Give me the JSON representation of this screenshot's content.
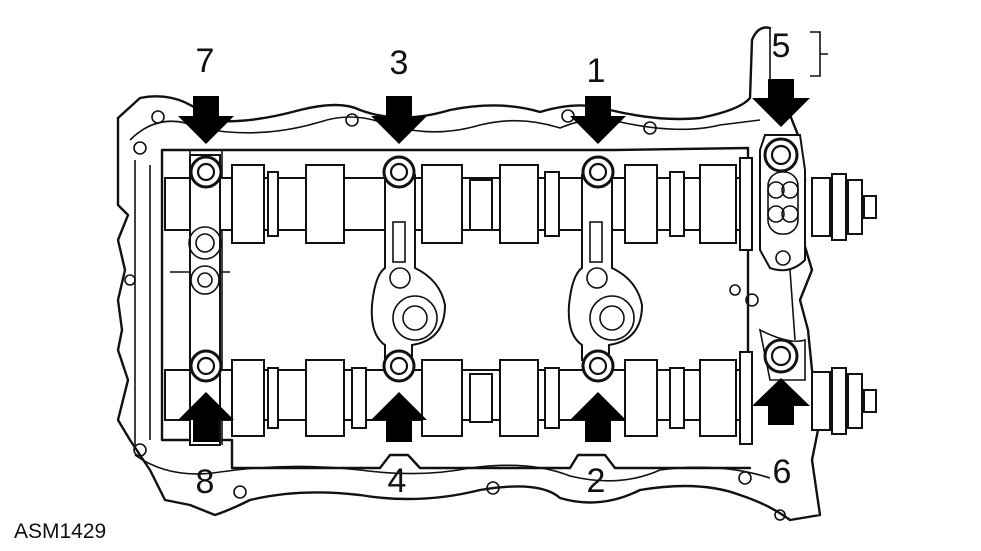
{
  "figure_code": "ASM1429",
  "bolt_labels": [
    "1",
    "2",
    "3",
    "4",
    "5",
    "6",
    "7",
    "8"
  ]
}
